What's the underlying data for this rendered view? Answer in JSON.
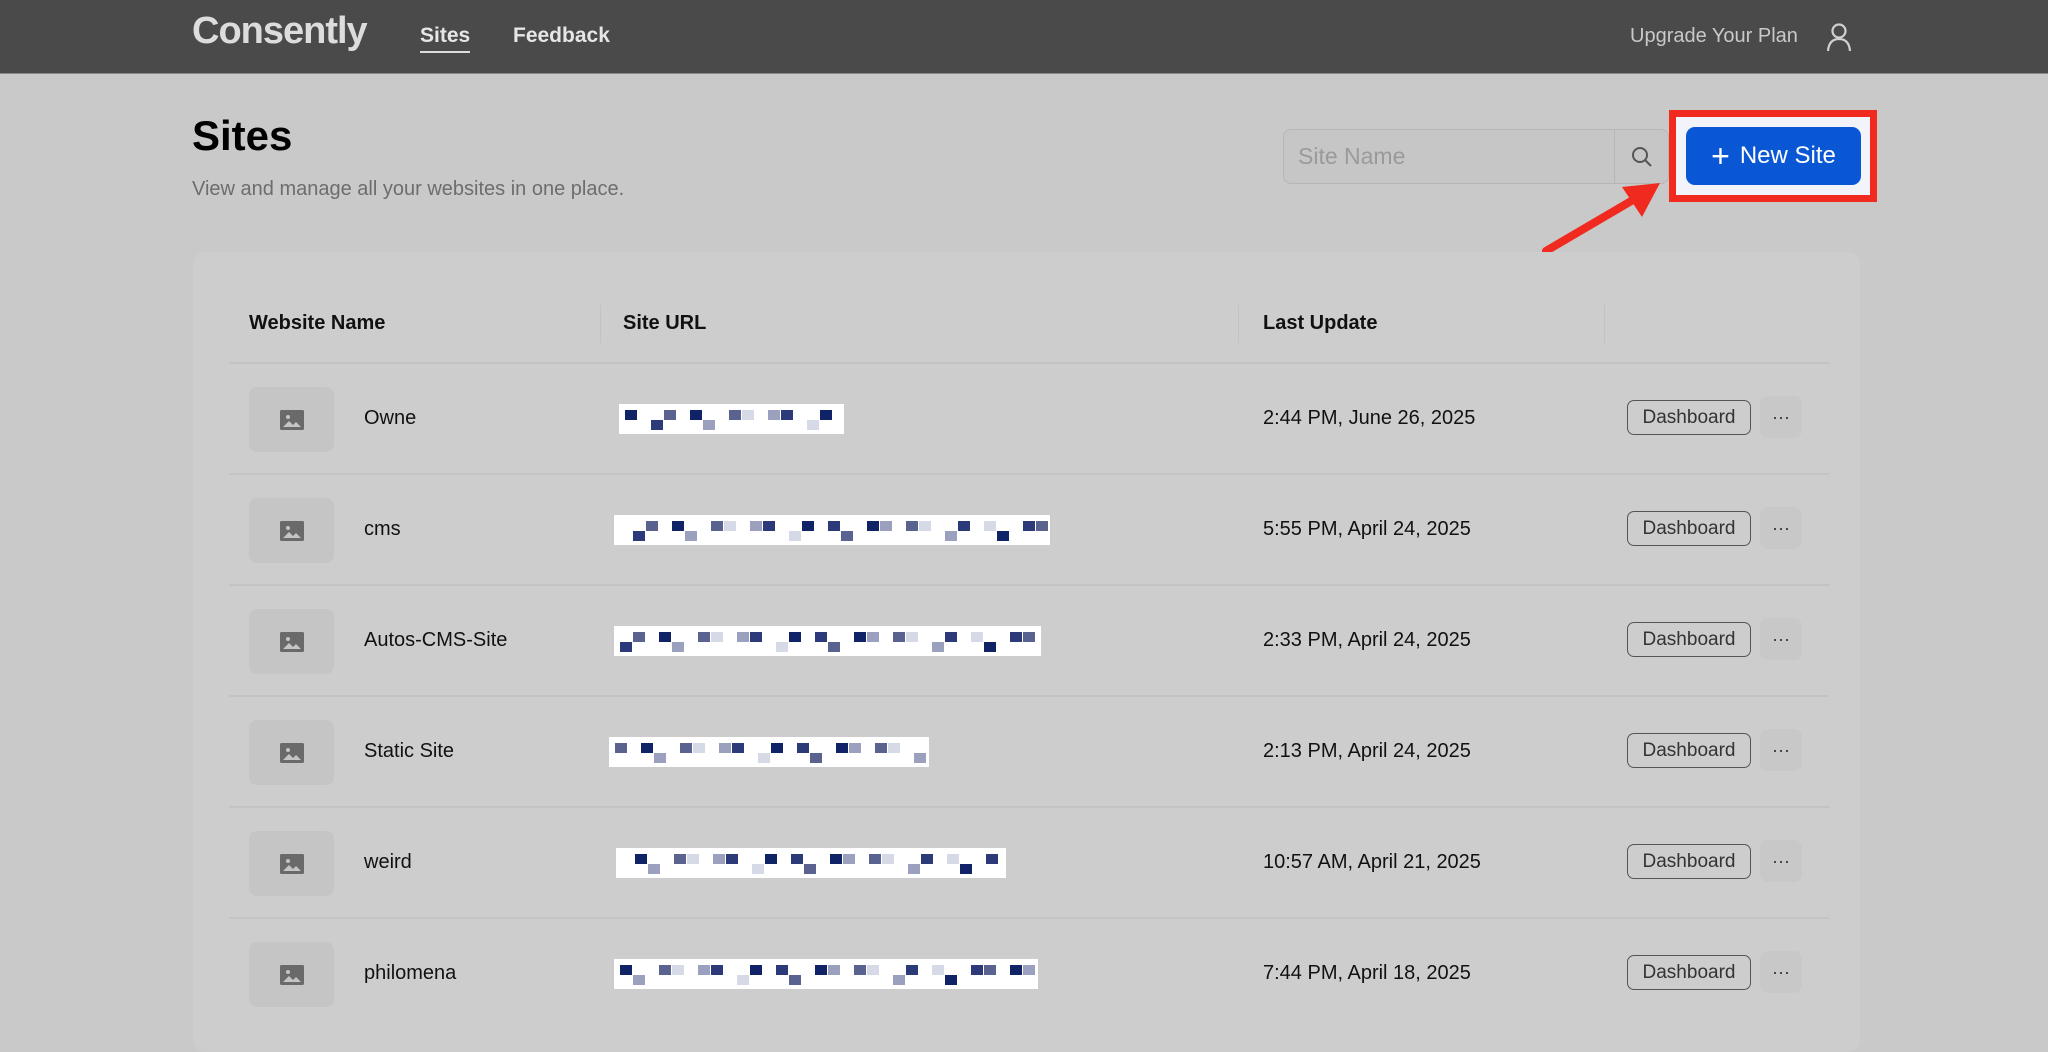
{
  "header": {
    "logo": "Consently",
    "nav": [
      {
        "label": "Sites",
        "active": true
      },
      {
        "label": "Feedback",
        "active": false
      }
    ],
    "upgrade": "Upgrade Your Plan",
    "user_icon": "user-icon"
  },
  "page": {
    "title": "Sites",
    "subtitle": "View and manage all your websites in one place."
  },
  "search": {
    "placeholder": "Site Name",
    "value": ""
  },
  "new_site": {
    "label": "New Site",
    "icon": "plus-icon",
    "color": "#0a57d6",
    "highlight_color": "#f02a1e"
  },
  "table": {
    "columns": [
      "Website Name",
      "Site URL",
      "Last Update",
      ""
    ],
    "rows": [
      {
        "name": "Owne",
        "url_redacted": true,
        "updated": "2:44 PM, June 26, 2025",
        "action": "Dashboard",
        "more": "···"
      },
      {
        "name": "cms",
        "url_redacted": true,
        "updated": "5:55 PM, April 24, 2025",
        "action": "Dashboard",
        "more": "···"
      },
      {
        "name": "Autos-CMS-Site",
        "url_redacted": true,
        "updated": "2:33 PM, April 24, 2025",
        "action": "Dashboard",
        "more": "···"
      },
      {
        "name": "Static Site",
        "url_redacted": true,
        "updated": "2:13 PM, April 24, 2025",
        "action": "Dashboard",
        "more": "···"
      },
      {
        "name": "weird",
        "url_redacted": true,
        "updated": "10:57 AM, April 21, 2025",
        "action": "Dashboard",
        "more": "···"
      },
      {
        "name": "philomena",
        "url_redacted": true,
        "updated": "7:44 PM, April 18, 2025",
        "action": "Dashboard",
        "more": "···"
      }
    ]
  }
}
